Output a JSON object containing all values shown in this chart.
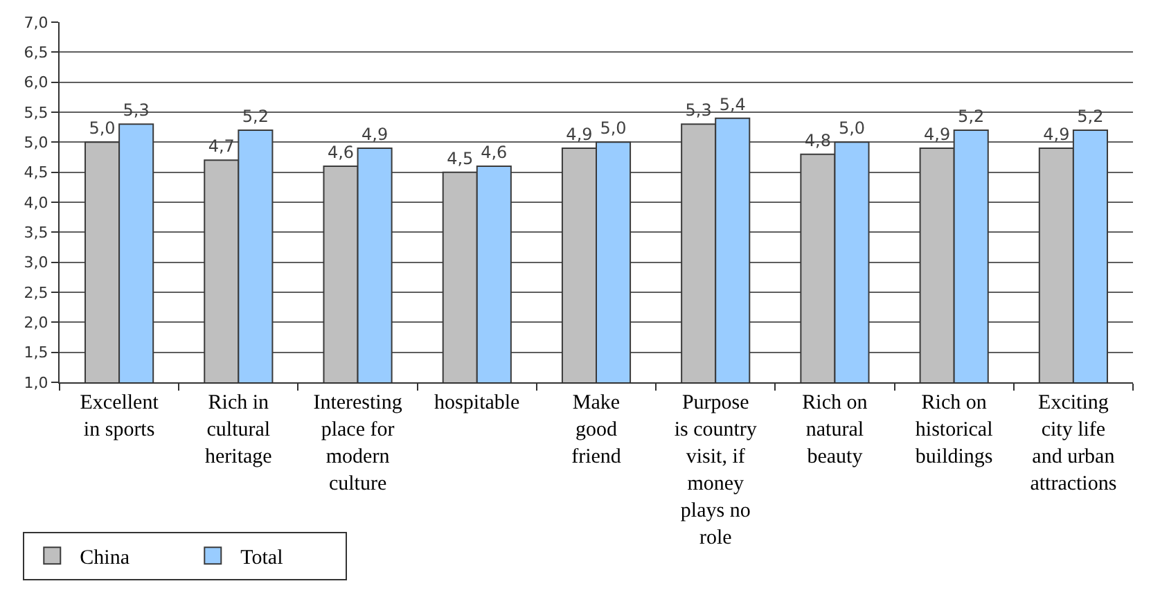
{
  "chart_data": {
    "type": "bar",
    "categories": [
      "Excellent in sports",
      "Rich in cultural heritage",
      "Interesting place for modern culture",
      "hospitable",
      "Make good friend",
      "Purpose is country visit, if money plays no role",
      "Rich on natural beauty",
      "Rich on historical buildings",
      "Exciting city life and urban attractions"
    ],
    "series": [
      {
        "name": "China",
        "color": "#bfbfbf",
        "values": [
          5.0,
          4.7,
          4.6,
          4.5,
          4.9,
          5.3,
          4.8,
          4.9,
          4.9
        ],
        "value_labels": [
          "5,0",
          "4,7",
          "4,6",
          "4,5",
          "4,9",
          "5,3",
          "4,8",
          "4,9",
          "4,9"
        ]
      },
      {
        "name": "Total",
        "color": "#99ccff",
        "values": [
          5.3,
          5.2,
          4.9,
          4.6,
          5.0,
          5.4,
          5.0,
          5.2,
          5.2
        ],
        "value_labels": [
          "5,3",
          "5,2",
          "4,9",
          "4,6",
          "5,0",
          "5,4",
          "5,0",
          "5,2",
          "5,2"
        ]
      }
    ],
    "ylim": [
      1,
      7
    ],
    "yticks": [
      {
        "value": 1,
        "label": "1,0"
      },
      {
        "value": 1.5,
        "label": "1,5"
      },
      {
        "value": 2,
        "label": "2,0"
      },
      {
        "value": 2.5,
        "label": "2,5"
      },
      {
        "value": 3,
        "label": "3,0"
      },
      {
        "value": 3.5,
        "label": "3,5"
      },
      {
        "value": 4,
        "label": "4,0"
      },
      {
        "value": 4.5,
        "label": "4,5"
      },
      {
        "value": 5,
        "label": "5,0"
      },
      {
        "value": 5.5,
        "label": "5,5"
      },
      {
        "value": 6,
        "label": "6,0"
      },
      {
        "value": 6.5,
        "label": "6,5"
      },
      {
        "value": 7,
        "label": "7,0"
      }
    ],
    "grid": "y",
    "legend": "bottom left"
  }
}
